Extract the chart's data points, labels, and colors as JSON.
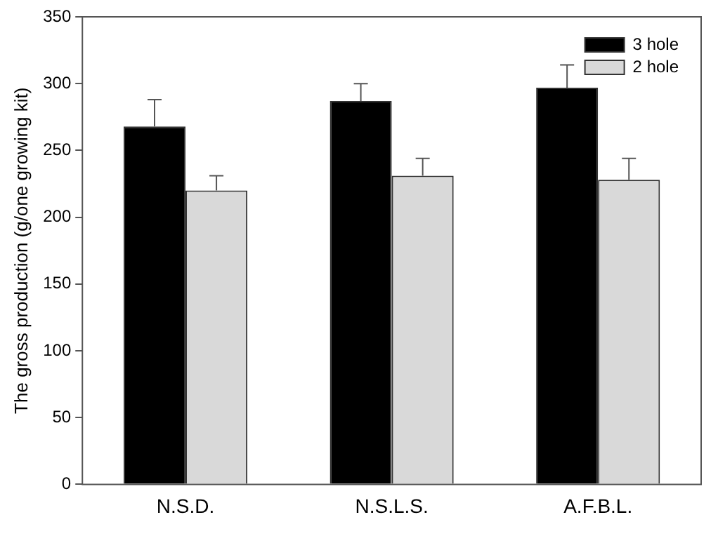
{
  "chart_data": {
    "type": "bar",
    "ylabel": "The gross production (g/one growing kit)",
    "categories": [
      "N.S.D.",
      "N.S.L.S.",
      "A.F.B.L."
    ],
    "series": [
      {
        "name": "3 hole",
        "color": "#000000",
        "values": [
          268,
          287,
          297
        ],
        "errors": [
          20,
          13,
          17
        ]
      },
      {
        "name": "2 hole",
        "color": "#d9d9d9",
        "values": [
          220,
          231,
          228
        ],
        "errors": [
          11,
          13,
          16
        ]
      }
    ],
    "ylim": [
      0,
      350
    ],
    "yticks": [
      0,
      50,
      100,
      150,
      200,
      250,
      300,
      350
    ],
    "grid": false,
    "legend": "top right"
  }
}
